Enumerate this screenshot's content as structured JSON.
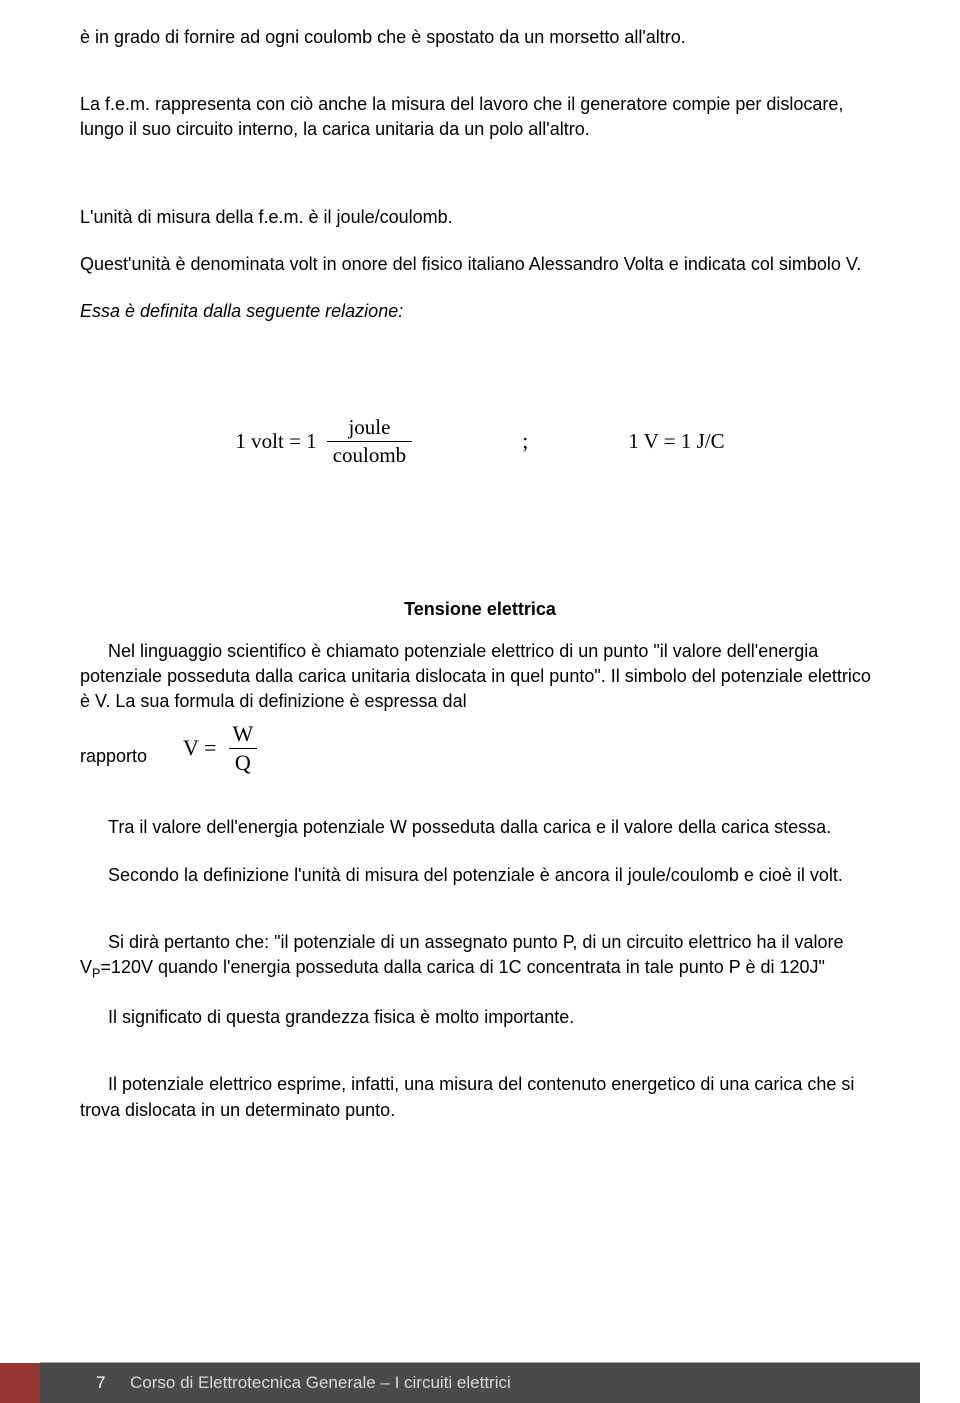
{
  "para1": "è in grado di fornire ad ogni coulomb che è spostato da un morsetto all'altro.",
  "para2": "La f.e.m. rappresenta con ciò anche la misura del lavoro che il generatore compie per dislocare, lungo il suo circuito interno, la carica unitaria da un polo all'altro.",
  "para3": "L'unità di misura della f.e.m. è il joule/coulomb.",
  "para4": "Quest'unità è denominata volt in onore del fisico italiano Alessandro Volta e indicata col simbolo V.",
  "para5": "Essa è definita dalla seguente relazione:",
  "formula": {
    "left_prefix": "1 volt = 1",
    "left_num": "joule",
    "left_den": "coulomb",
    "semicolon": ";",
    "right": "1 V = 1 J/C"
  },
  "section_title": "Tensione elettrica",
  "para6": "Nel linguaggio scientifico è chiamato potenziale elettrico di un punto \"il valore dell'energia potenziale posseduta dalla carica unitaria dislocata in quel punto\". Il simbolo del potenziale elettrico è V. La sua formula di definizione è espressa dal",
  "rapporto": "rapporto",
  "formula2": {
    "prefix": "V =",
    "num": "W",
    "den": "Q"
  },
  "para7": "Tra il valore dell'energia potenziale W posseduta dalla carica e il valore della carica stessa.",
  "para8": "Secondo la definizione l'unità di misura del potenziale è ancora il joule/coulomb e cioè il volt.",
  "para9_pre": "Si dirà pertanto che: \"il potenziale di un assegnato punto P, di un circuito elettrico ha il valore V",
  "para9_sub": "P",
  "para9_post": "=120V quando l'energia posseduta dalla carica di 1C concentrata in tale punto P è di 120J\"",
  "para10": "Il significato di questa grandezza fisica è molto importante.",
  "para11": "Il potenziale elettrico esprime, infatti, una misura del contenuto energetico di una carica che si trova dislocata in un determinato punto.",
  "footer": {
    "page_number": "7",
    "text": "Corso di Elettrotecnica Generale – I circuiti elettrici"
  },
  "colors": {
    "footer_red": "#943734",
    "footer_gray": "#4a4a4a",
    "footer_text": "#d9d9d9",
    "background": "#ffffff"
  }
}
